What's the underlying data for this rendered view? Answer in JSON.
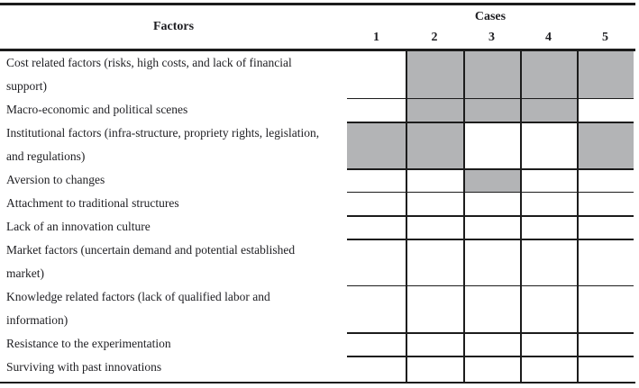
{
  "table": {
    "factors_header": "Factors",
    "cases_header": "Cases",
    "case_numbers": [
      "1",
      "2",
      "3",
      "4",
      "5"
    ],
    "rows": [
      {
        "factor": "Cost related factors (risks, high costs, and lack of financial support)",
        "shaded": [
          false,
          true,
          true,
          true,
          true
        ]
      },
      {
        "factor": "Macro-economic and political scenes",
        "shaded": [
          false,
          true,
          true,
          true,
          false
        ]
      },
      {
        "factor": "Institutional factors (infra-structure, propriety rights, legislation, and regulations)",
        "shaded": [
          true,
          true,
          false,
          false,
          true
        ]
      },
      {
        "factor": "Aversion to changes",
        "shaded": [
          false,
          false,
          true,
          false,
          false
        ]
      },
      {
        "factor": "Attachment to traditional structures",
        "shaded": [
          false,
          false,
          false,
          false,
          false
        ]
      },
      {
        "factor": "Lack of an innovation culture",
        "shaded": [
          false,
          false,
          false,
          false,
          false
        ]
      },
      {
        "factor": "Market factors (uncertain demand and potential established market)",
        "shaded": [
          false,
          false,
          false,
          false,
          false
        ]
      },
      {
        "factor": "Knowledge related factors (lack of qualified labor and information)",
        "shaded": [
          false,
          false,
          false,
          false,
          false
        ]
      },
      {
        "factor": "Resistance to the experimentation",
        "shaded": [
          false,
          false,
          false,
          false,
          false
        ]
      },
      {
        "factor": "Surviving with past innovations",
        "shaded": [
          false,
          false,
          false,
          false,
          false
        ]
      }
    ],
    "colors": {
      "shaded_cell": "#b3b4b6",
      "line": "#1c1c1c",
      "text": "#1e1e22",
      "background": "#ffffff"
    }
  }
}
